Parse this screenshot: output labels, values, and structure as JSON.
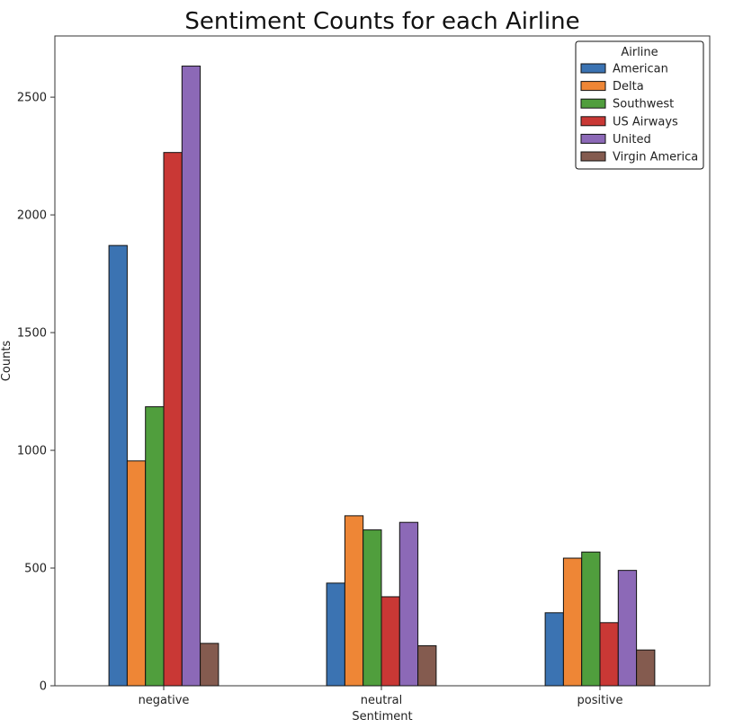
{
  "chart_data": {
    "type": "bar",
    "title": "Sentiment Counts for each Airline",
    "xlabel": "Sentiment",
    "ylabel": "Counts",
    "categories": [
      "negative",
      "neutral",
      "positive"
    ],
    "ylim": [
      0,
      2760
    ],
    "yticks": [
      0,
      500,
      1000,
      1500,
      2000,
      2500
    ],
    "grid": false,
    "legend": {
      "title": "Airline",
      "placement": "top-right"
    },
    "series": [
      {
        "name": "American",
        "values": [
          1870,
          436,
          310
        ],
        "color": "#3b73b2"
      },
      {
        "name": "Delta",
        "values": [
          955,
          722,
          542
        ],
        "color": "#ee8636"
      },
      {
        "name": "Southwest",
        "values": [
          1185,
          662,
          568
        ],
        "color": "#509e3d"
      },
      {
        "name": "US Airways",
        "values": [
          2265,
          378,
          268
        ],
        "color": "#c93835"
      },
      {
        "name": "United",
        "values": [
          2632,
          694,
          490
        ],
        "color": "#8c69b7"
      },
      {
        "name": "Virgin America",
        "values": [
          180,
          170,
          152
        ],
        "color": "#845b4f"
      }
    ]
  }
}
